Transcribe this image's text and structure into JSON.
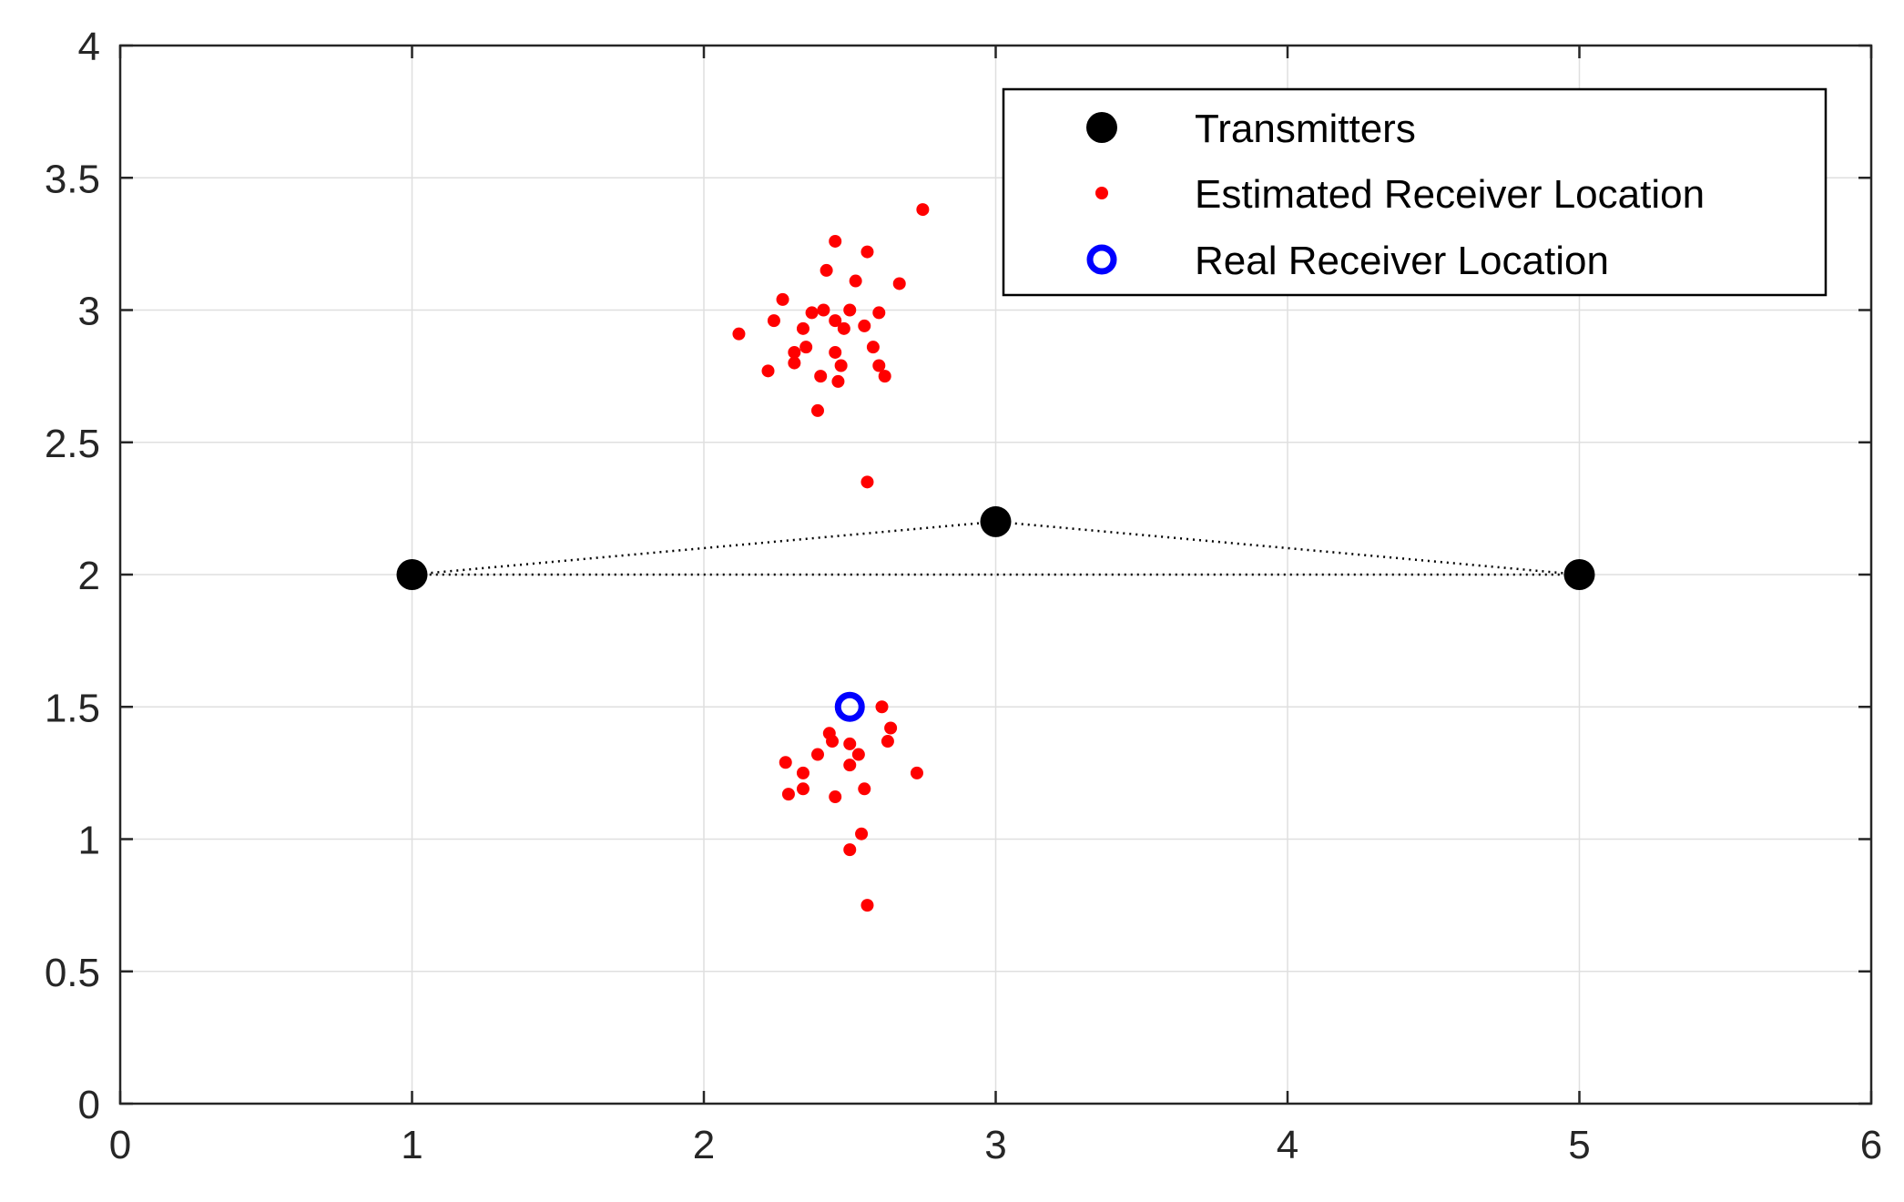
{
  "chart_data": {
    "type": "scatter",
    "title": "",
    "xlabel": "",
    "ylabel": "",
    "xlim": [
      0,
      6
    ],
    "ylim": [
      0,
      4
    ],
    "xticks": [
      "0",
      "1",
      "2",
      "3",
      "4",
      "5",
      "6"
    ],
    "yticks": [
      "0",
      "0.5",
      "1",
      "1.5",
      "2",
      "2.5",
      "3",
      "3.5",
      "4"
    ],
    "grid": true,
    "legend_position": "top-right",
    "colors": {
      "transmitters": "#000000",
      "estimated": "#ff0000",
      "real": "#0000ff",
      "axis": "#262626",
      "grid": "#dfdfdf"
    },
    "legend": [
      {
        "label": "Transmitters",
        "marker": "filled-circle-large",
        "color": "#000000"
      },
      {
        "label": "Estimated Receiver Location",
        "marker": "dot",
        "color": "#ff0000"
      },
      {
        "label": "Real Receiver Location",
        "marker": "open-circle",
        "color": "#0000ff"
      }
    ],
    "series": [
      {
        "name": "Transmitters",
        "points": [
          [
            1,
            2
          ],
          [
            3,
            2.2
          ],
          [
            5,
            2
          ]
        ]
      },
      {
        "name": "Estimated Receiver Location",
        "points": [
          [
            2.75,
            3.38
          ],
          [
            2.45,
            3.26
          ],
          [
            2.56,
            3.22
          ],
          [
            2.42,
            3.15
          ],
          [
            2.52,
            3.11
          ],
          [
            2.67,
            3.1
          ],
          [
            2.27,
            3.04
          ],
          [
            2.37,
            2.99
          ],
          [
            2.41,
            3.0
          ],
          [
            2.5,
            3.0
          ],
          [
            2.6,
            2.99
          ],
          [
            2.24,
            2.96
          ],
          [
            2.45,
            2.96
          ],
          [
            2.48,
            2.93
          ],
          [
            2.34,
            2.93
          ],
          [
            2.55,
            2.94
          ],
          [
            2.12,
            2.91
          ],
          [
            2.58,
            2.86
          ],
          [
            2.35,
            2.86
          ],
          [
            2.31,
            2.84
          ],
          [
            2.45,
            2.84
          ],
          [
            2.31,
            2.8
          ],
          [
            2.47,
            2.79
          ],
          [
            2.6,
            2.79
          ],
          [
            2.22,
            2.77
          ],
          [
            2.4,
            2.75
          ],
          [
            2.62,
            2.75
          ],
          [
            2.46,
            2.73
          ],
          [
            2.39,
            2.62
          ],
          [
            2.56,
            2.35
          ],
          [
            2.61,
            1.5
          ],
          [
            2.64,
            1.42
          ],
          [
            2.43,
            1.4
          ],
          [
            2.44,
            1.37
          ],
          [
            2.5,
            1.36
          ],
          [
            2.63,
            1.37
          ],
          [
            2.39,
            1.32
          ],
          [
            2.53,
            1.32
          ],
          [
            2.28,
            1.29
          ],
          [
            2.5,
            1.28
          ],
          [
            2.34,
            1.25
          ],
          [
            2.73,
            1.25
          ],
          [
            2.34,
            1.19
          ],
          [
            2.55,
            1.19
          ],
          [
            2.29,
            1.17
          ],
          [
            2.45,
            1.16
          ],
          [
            2.54,
            1.02
          ],
          [
            2.5,
            0.96
          ],
          [
            2.56,
            0.75
          ]
        ]
      },
      {
        "name": "Real Receiver Location",
        "points": [
          [
            2.5,
            1.5
          ]
        ]
      }
    ],
    "lines": [
      {
        "style": "dotted",
        "points": [
          [
            1,
            2
          ],
          [
            3,
            2.2
          ],
          [
            5,
            2
          ],
          [
            1,
            2
          ]
        ]
      }
    ]
  }
}
